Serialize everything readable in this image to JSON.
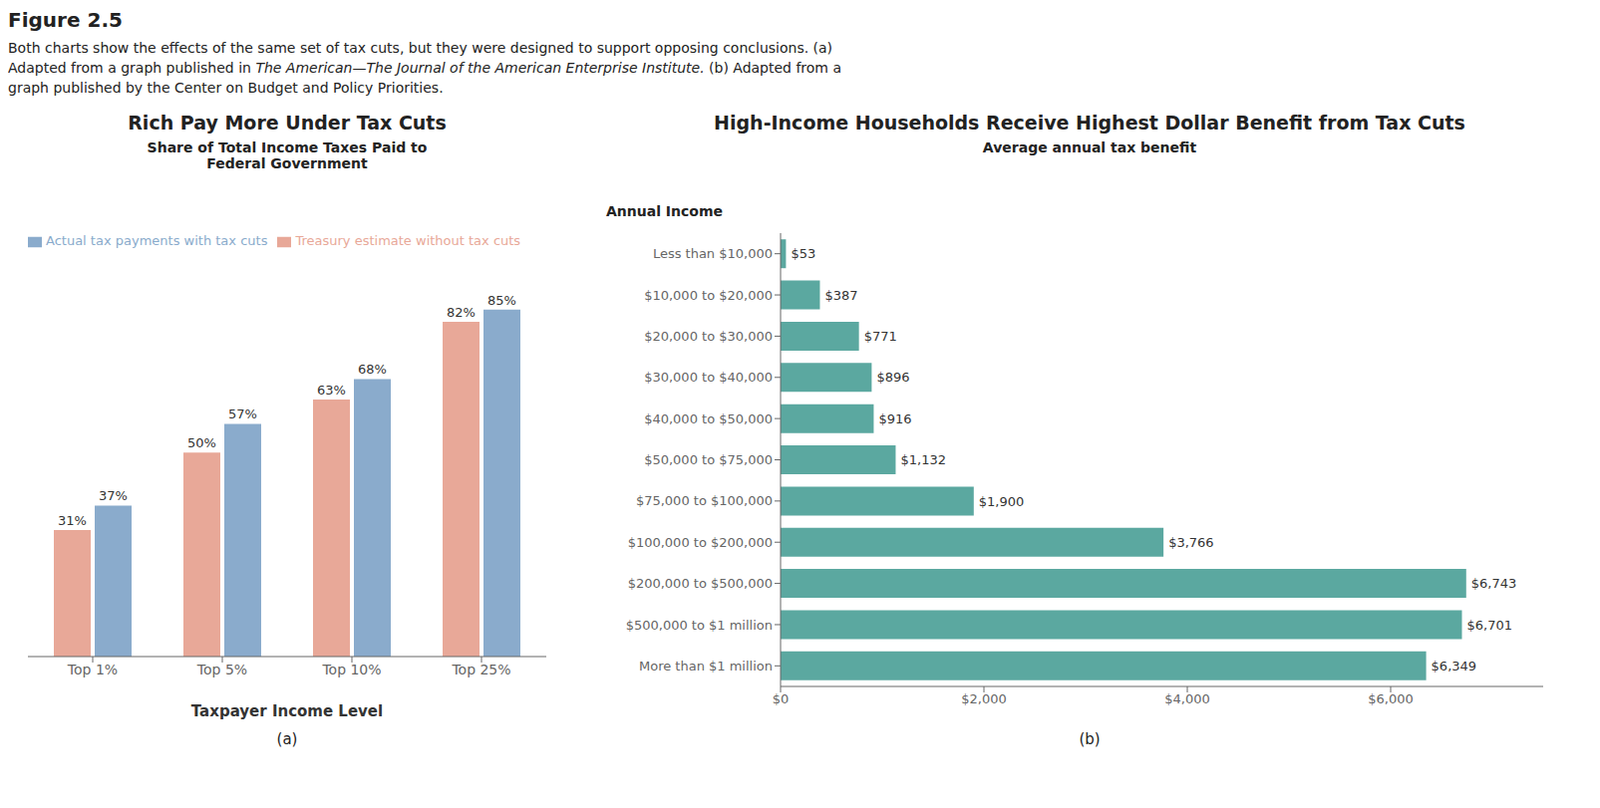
{
  "title": "Figure 2.5",
  "caption": [
    "Both charts show the effects of the same set of tax cuts, but they were designed to support opposing conclusions. (a)",
    [
      "Adapted from a graph published in ",
      "The American—The Journal of the American Enterprise Institute.",
      " (b) Adapted from a"
    ],
    "graph published by the Center on Budget and Policy Priorities."
  ],
  "chart_data": [
    {
      "type": "bar",
      "title": "Rich Pay More Under Tax Cuts",
      "subtitle": "Share of Total Income Taxes Paid to Federal Government",
      "xlabel": "Taxpayer Income Level",
      "categories": [
        "Top 1%",
        "Top 5%",
        "Top 10%",
        "Top 25%"
      ],
      "series": [
        {
          "name": "Treasury estimate without tax cuts",
          "color": "#e8a898",
          "values": [
            31,
            50,
            63,
            82
          ],
          "value_labels": [
            "31%",
            "50%",
            "63%",
            "82%"
          ]
        },
        {
          "name": "Actual tax payments with tax cuts",
          "color": "#8aabcc",
          "values": [
            37,
            57,
            68,
            85
          ],
          "value_labels": [
            "37%",
            "57%",
            "68%",
            "85%"
          ]
        }
      ],
      "ylim": [
        0,
        98
      ],
      "legend": "upper left",
      "data_labels": true,
      "tick_labels": "x",
      "grid": false,
      "annotations": [
        "(a)"
      ]
    },
    {
      "type": "bar",
      "orientation": "horizontal",
      "title": "High-Income Households Receive Highest Dollar Benefit from Tax Cuts",
      "subtitle": "Average annual tax benefit",
      "ylabel": "Annual Income",
      "categories": [
        "Less than $10,000",
        "$10,000 to $20,000",
        "$20,000 to $30,000",
        "$30,000 to $40,000",
        "$40,000 to $50,000",
        "$50,000 to $75,000",
        "$75,000 to $100,000",
        "$100,000 to $200,000",
        "$200,000 to $500,000",
        "$500,000 to $1 million",
        "More than $1 million"
      ],
      "values": [
        53,
        387,
        771,
        896,
        916,
        1132,
        1900,
        3766,
        6743,
        6701,
        6349
      ],
      "value_labels": [
        "$53",
        "$387",
        "$771",
        "$896",
        "$916",
        "$1,132",
        "$1,900",
        "$3,766",
        "$6,743",
        "$6,701",
        "$6,349"
      ],
      "color": "#5ba8a0",
      "xlim": [
        0,
        7500
      ],
      "xticks": [
        {
          "value": 0,
          "label": "$0"
        },
        {
          "value": 2000,
          "label": "$2,000"
        },
        {
          "value": 4000,
          "label": "$4,000"
        },
        {
          "value": 6000,
          "label": "$6,000"
        }
      ],
      "data_labels": true,
      "grid": false,
      "annotations": [
        "(b)"
      ]
    }
  ]
}
